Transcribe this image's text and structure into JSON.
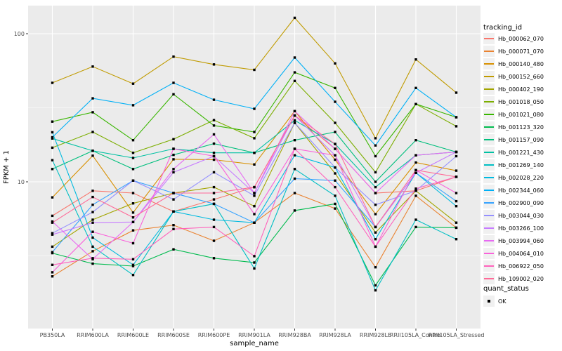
{
  "figure": {
    "bg": "#FFFFFF",
    "panel_bg": "#EBEBEB",
    "grid_color": "#FFFFFF",
    "axis_text_color": "#4D4D4D",
    "tick_color": "#333333",
    "point_color": "#000000",
    "legend_key_bg": "#F0F0F0"
  },
  "chart_data": {
    "type": "line",
    "title": "",
    "xlabel": "sample_name",
    "ylabel": "FPKM + 1",
    "y_scale": "log10",
    "y_ticks": [
      10,
      100
    ],
    "y_tick_labels": [
      "10",
      "100"
    ],
    "y_minor_ticks": [
      3.1623,
      31.623
    ],
    "ylim": [
      1.03,
      151
    ],
    "grid": true,
    "marker": "square",
    "legend_position": "right",
    "legend_title": "tracking_id",
    "legend2_title": "quant_status",
    "legend2_items": [
      {
        "label": "OK",
        "marker": "square",
        "color": "#000000"
      }
    ],
    "categories": [
      "PB350LA",
      "RRIM600LA",
      "RRIM600LE",
      "RRIM600SE",
      "RRIM600PE",
      "RRIM901LA",
      "RRIM928BA",
      "RRIM928LA",
      "RRIM928LE",
      "RRII105LA_Control",
      "RRII105LA_Stressed"
    ],
    "series": [
      {
        "name": "Hb_000062_070",
        "color": "#F8766D",
        "values": [
          5.9,
          8.7,
          8.4,
          6.3,
          7.6,
          9.2,
          28,
          16.7,
          8.4,
          8.7,
          10.8
        ]
      },
      {
        "name": "Hb_000071_070",
        "color": "#EA8331",
        "values": [
          2.3,
          3.4,
          4.7,
          5.1,
          4.0,
          5.3,
          8.4,
          6.6,
          2.65,
          8.05,
          4.9
        ]
      },
      {
        "name": "Hb_000140_480",
        "color": "#D89000",
        "values": [
          7.85,
          15.0,
          6.2,
          14.2,
          14.1,
          13.1,
          30,
          14.1,
          6.05,
          13.5,
          11.9
        ]
      },
      {
        "name": "Hb_000152_660",
        "color": "#C09B00",
        "values": [
          46.6,
          60,
          46,
          70,
          62,
          57,
          128,
          63,
          19.7,
          67,
          40
        ]
      },
      {
        "name": "Hb_000402_190",
        "color": "#A3A500",
        "values": [
          3.65,
          5.55,
          7.15,
          8.4,
          9.2,
          6.85,
          25,
          11.4,
          4.55,
          8.7,
          5.3
        ]
      },
      {
        "name": "Hb_001018_050",
        "color": "#7CAE00",
        "values": [
          17.0,
          21.7,
          15.7,
          19.4,
          26.1,
          19.7,
          48,
          25,
          11.6,
          33.5,
          23.7
        ]
      },
      {
        "name": "Hb_001021_080",
        "color": "#39B600",
        "values": [
          25.5,
          29.5,
          19.1,
          39,
          24.0,
          21.7,
          54.8,
          43,
          14.9,
          33.5,
          27.3
        ]
      },
      {
        "name": "Hb_001123_320",
        "color": "#00BB4E",
        "values": [
          3.3,
          2.8,
          2.7,
          3.5,
          3.05,
          2.85,
          6.4,
          7.1,
          2.0,
          4.95,
          4.9
        ]
      },
      {
        "name": "Hb_001157_090",
        "color": "#00BF7D",
        "values": [
          12.2,
          16.2,
          12.2,
          15.2,
          18.1,
          15.7,
          19.1,
          21.7,
          10.0,
          19.1,
          15.9
        ]
      },
      {
        "name": "Hb_001221_430",
        "color": "#00C1A3",
        "values": [
          19.6,
          16.2,
          14.5,
          16.7,
          15.7,
          15.7,
          26,
          18.0,
          9.2,
          15.1,
          15.9
        ]
      },
      {
        "name": "Hb_001269_140",
        "color": "#00BFC4",
        "values": [
          14.0,
          3.65,
          2.35,
          6.3,
          7.1,
          2.6,
          12.2,
          8.05,
          1.85,
          5.55,
          4.1
        ]
      },
      {
        "name": "Hb_002028_220",
        "color": "#00BAE0",
        "values": [
          21.6,
          4.2,
          2.75,
          6.3,
          5.55,
          5.3,
          15.1,
          12.5,
          4.1,
          11.5,
          6.85
        ]
      },
      {
        "name": "Hb_002344_060",
        "color": "#00B0F6",
        "values": [
          20.0,
          36.6,
          32.9,
          46.6,
          35.8,
          31.1,
          69,
          34.7,
          17.6,
          43,
          27.3
        ]
      },
      {
        "name": "Hb_002900_090",
        "color": "#35A2FF",
        "values": [
          3.35,
          7.0,
          10.2,
          8.4,
          7.1,
          5.3,
          10.5,
          10.2,
          4.95,
          11.5,
          7.4
        ]
      },
      {
        "name": "Hb_003044_030",
        "color": "#9590FF",
        "values": [
          4.5,
          6.25,
          10.2,
          7.6,
          11.6,
          8.05,
          25,
          12.5,
          7.0,
          8.7,
          14.9
        ]
      },
      {
        "name": "Hb_003266_100",
        "color": "#C77CFF",
        "values": [
          4.4,
          5.3,
          5.35,
          11.6,
          14.9,
          8.4,
          28,
          15.1,
          4.95,
          11.5,
          15.9
        ]
      },
      {
        "name": "Hb_003994_060",
        "color": "#E76BF3",
        "values": [
          5.4,
          3.0,
          5.35,
          12.2,
          20.9,
          8.4,
          30,
          16.7,
          8.4,
          15.1,
          15.9
        ]
      },
      {
        "name": "Hb_004064_010",
        "color": "#FA62DB",
        "values": [
          2.45,
          4.6,
          3.85,
          16.7,
          14.9,
          6.05,
          16.7,
          15.1,
          3.65,
          12.0,
          8.4
        ]
      },
      {
        "name": "Hb_006922_050",
        "color": "#FF62BC",
        "values": [
          2.75,
          3.05,
          3.0,
          4.8,
          4.95,
          3.15,
          16.7,
          9.2,
          3.65,
          9.0,
          10.8
        ]
      },
      {
        "name": "Hb_109002_020",
        "color": "#FF6A98",
        "values": [
          5.3,
          7.9,
          5.75,
          8.4,
          8.4,
          9.2,
          28,
          18.0,
          4.95,
          12.0,
          10.8
        ]
      }
    ]
  }
}
